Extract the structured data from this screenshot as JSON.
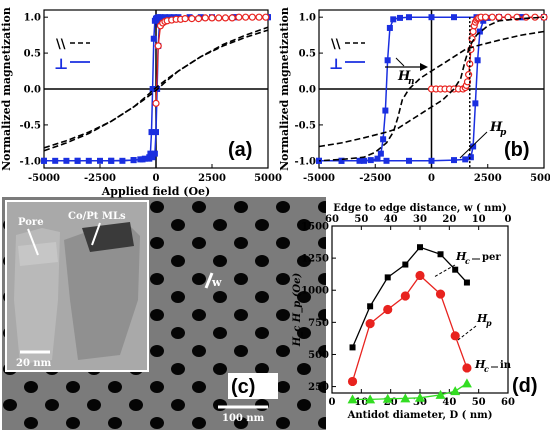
{
  "colors": {
    "blue": "#1a2fe0",
    "red": "#e8231f",
    "black": "#000000",
    "green": "#33dd22",
    "sem_bg": "#7b7b7b"
  },
  "panel_labels": {
    "a": "(a)",
    "b": "(b)",
    "c": "(c)",
    "d": "(d)"
  },
  "sem": {
    "pore_label": "Pore",
    "ml_label": "Co/Pt MLs",
    "scale_inset": "20 nm",
    "scale_main": "100 nm",
    "w_label": "w"
  },
  "chart_data": [
    {
      "id": "a",
      "type": "line",
      "xlabel": "Applied field (Oe)",
      "ylabel": "Normalized magnetization",
      "xlim": [
        -5000,
        5000
      ],
      "ylim": [
        -1.1,
        1.1
      ],
      "xticks": [
        "-5000",
        "-2500",
        "0",
        "2500",
        "5000"
      ],
      "yticks": [
        "-1.0",
        "-0.5",
        "0.0",
        "0.5",
        "1.0"
      ],
      "legend": {
        "placement": "left",
        "entries": [
          {
            "symbol": "\\\\",
            "style": "dashed black"
          },
          {
            "symbol": "⊥",
            "style": "solid blue"
          }
        ]
      },
      "series": [
        {
          "style": "blue squares",
          "branch": "down",
          "x": [
            -5000,
            -4500,
            -4000,
            -3500,
            -3000,
            -2500,
            -2000,
            -1500,
            -1000,
            -700,
            -500,
            -300,
            -250,
            -200,
            -150,
            -100,
            -50,
            0,
            50,
            100,
            200,
            400,
            800,
            1500,
            2500,
            3500,
            5000
          ],
          "y": [
            -1,
            -1,
            -1,
            -1,
            -1,
            -1,
            -1,
            -1,
            -0.99,
            -0.98,
            -0.97,
            -0.95,
            -0.9,
            -0.6,
            0,
            0.7,
            0.95,
            0.98,
            0.99,
            1,
            1,
            1,
            1,
            1,
            1,
            1,
            1
          ]
        },
        {
          "style": "blue squares",
          "branch": "up",
          "x": [
            -5000,
            -3500,
            -2000,
            -1000,
            -600,
            -300,
            -150,
            -50,
            0,
            50,
            100,
            150,
            200,
            250,
            300,
            400,
            600,
            1000,
            2000,
            3500,
            5000
          ],
          "y": [
            -1,
            -1,
            -1,
            -0.99,
            -0.98,
            -0.97,
            -0.95,
            -0.9,
            -0.6,
            0,
            0.6,
            0.9,
            0.95,
            0.97,
            0.98,
            0.99,
            1,
            1,
            1,
            1,
            1
          ]
        },
        {
          "style": "red circles",
          "x": [
            0,
            100,
            200,
            300,
            400,
            500,
            700,
            900,
            1100,
            1300,
            1600,
            1900,
            2200,
            2500,
            2800,
            3100,
            3400,
            3700,
            4000,
            4300,
            4600,
            4900
          ],
          "y": [
            -0.2,
            0.6,
            0.88,
            0.92,
            0.94,
            0.95,
            0.96,
            0.97,
            0.97,
            0.98,
            0.98,
            0.98,
            0.99,
            0.99,
            0.99,
            0.99,
            0.99,
            1,
            1,
            1,
            1,
            1
          ]
        },
        {
          "style": "black dashed",
          "branch": "up",
          "x": [
            -5000,
            -4000,
            -3000,
            -2000,
            -1000,
            -500,
            0,
            500,
            1000,
            2000,
            3000,
            4000,
            5000
          ],
          "y": [
            -0.82,
            -0.72,
            -0.6,
            -0.45,
            -0.25,
            -0.12,
            0.02,
            0.14,
            0.25,
            0.45,
            0.62,
            0.75,
            0.86
          ]
        },
        {
          "style": "black dashed",
          "branch": "down",
          "x": [
            -5000,
            -4000,
            -3000,
            -2000,
            -1000,
            -500,
            0,
            500,
            1000,
            2000,
            3000,
            4000,
            5000
          ],
          "y": [
            -0.86,
            -0.75,
            -0.62,
            -0.45,
            -0.25,
            -0.14,
            -0.02,
            0.12,
            0.25,
            0.45,
            0.6,
            0.72,
            0.82
          ]
        }
      ]
    },
    {
      "id": "b",
      "type": "line",
      "xlabel": "",
      "ylabel": "Normalized magnetization",
      "xlim": [
        -5000,
        5000
      ],
      "ylim": [
        -1.1,
        1.1
      ],
      "xticks": [
        "-5000",
        "-2500",
        "0",
        "2500",
        "5000"
      ],
      "yticks": [
        "-1.0",
        "-0.5",
        "0.0",
        "0.5",
        "1.0"
      ],
      "legend": {
        "placement": "left",
        "entries": [
          {
            "symbol": "\\\\",
            "style": "dashed black"
          },
          {
            "symbol": "⊥",
            "style": "solid blue"
          }
        ]
      },
      "annotations": {
        "Hn": "H",
        "Hn_sub": "n",
        "Hp": "H",
        "Hp_sub": "p"
      },
      "series": [
        {
          "style": "blue squares",
          "branch": "down",
          "x": [
            5000,
            4000,
            3000,
            2000,
            1000,
            0,
            -1000,
            -1400,
            -1700,
            -1850,
            -1950,
            -2050,
            -2150,
            -2250,
            -2400,
            -2700,
            -3200,
            -4000,
            -5000
          ],
          "y": [
            1,
            1,
            1,
            1,
            1,
            1,
            1,
            0.99,
            0.97,
            0.85,
            0.4,
            -0.3,
            -0.7,
            -0.9,
            -0.97,
            -0.99,
            -1,
            -1,
            -1
          ]
        },
        {
          "style": "blue squares",
          "branch": "up",
          "x": [
            -5000,
            -4000,
            -3000,
            -2000,
            -1000,
            0,
            1000,
            1500,
            1750,
            1850,
            1950,
            2050,
            2150,
            2300,
            2500,
            3000,
            4000,
            5000
          ],
          "y": [
            -1,
            -1,
            -1,
            -1,
            -1,
            -1,
            -0.99,
            -0.98,
            -0.95,
            -0.8,
            -0.2,
            0.4,
            0.8,
            0.95,
            0.99,
            1,
            1,
            1
          ]
        },
        {
          "style": "red circles",
          "x": [
            0,
            200,
            400,
            600,
            800,
            1000,
            1200,
            1400,
            1500,
            1550,
            1600,
            1650,
            1700,
            1750,
            1800,
            1850,
            1900,
            1950,
            2000,
            2050,
            2100,
            2200,
            2400,
            2700,
            3000,
            3400,
            3800,
            4200,
            4600,
            5000
          ],
          "y": [
            0,
            0,
            0,
            0,
            0,
            0,
            0,
            0,
            0.02,
            0.05,
            0.1,
            0.2,
            0.35,
            0.55,
            0.7,
            0.8,
            0.88,
            0.93,
            0.96,
            0.98,
            0.99,
            1,
            1,
            1,
            1,
            1,
            1,
            1,
            1,
            1
          ]
        },
        {
          "style": "black dashed",
          "branch": "up",
          "x": [
            -5000,
            -4000,
            -3000,
            -2000,
            -1500,
            -1000,
            -500,
            0,
            500,
            1000,
            1300,
            1500,
            1700,
            2000,
            2500,
            3000,
            4000,
            5000
          ],
          "y": [
            -0.8,
            -0.75,
            -0.68,
            -0.6,
            -0.55,
            -0.45,
            -0.35,
            -0.25,
            -0.15,
            0,
            0.15,
            0.4,
            0.6,
            0.75,
            0.88,
            0.95,
            0.98,
            1
          ]
        },
        {
          "style": "black dashed",
          "branch": "down",
          "x": [
            5000,
            4000,
            3000,
            2000,
            1500,
            1000,
            500,
            0,
            -500,
            -1000,
            -1300,
            -1500,
            -1700,
            -2000,
            -2500,
            -3000,
            -4000,
            -5000
          ],
          "y": [
            0.8,
            0.75,
            0.68,
            0.6,
            0.55,
            0.45,
            0.35,
            0.25,
            0.15,
            0,
            -0.15,
            -0.4,
            -0.6,
            -0.75,
            -0.88,
            -0.95,
            -0.98,
            -1
          ]
        }
      ]
    },
    {
      "id": "d",
      "type": "line",
      "xlabel": "Antidot diameter, D ( nm)",
      "ylabel": "H_c H_p (Oe)",
      "top_xlabel": "Edge to edge distance, w ( nm)",
      "xlim": [
        0,
        60
      ],
      "ylim": [
        200,
        1500
      ],
      "xticks": [
        "0",
        "10",
        "20",
        "30",
        "40",
        "50",
        "60"
      ],
      "top_xticks": [
        "60",
        "50",
        "40",
        "30",
        "20",
        "10",
        "0"
      ],
      "yticks": [
        "250",
        "500",
        "750",
        "1000",
        "1250",
        "1500"
      ],
      "series": [
        {
          "name": "H_c - per",
          "style": "black squares",
          "x": [
            7,
            13,
            19,
            25,
            30,
            37,
            42,
            46
          ],
          "y": [
            555,
            875,
            1100,
            1200,
            1335,
            1280,
            1160,
            1060
          ]
        },
        {
          "name": "H_p",
          "style": "red circles",
          "x": [
            7,
            13,
            19,
            25,
            30,
            37,
            42,
            46
          ],
          "y": [
            290,
            740,
            850,
            955,
            1115,
            970,
            645,
            395
          ]
        },
        {
          "name": "H_c - in",
          "style": "green triangles",
          "x": [
            7,
            13,
            19,
            25,
            30,
            37,
            42,
            46
          ],
          "y": [
            150,
            150,
            155,
            158,
            163,
            185,
            215,
            275
          ]
        }
      ],
      "labels": {
        "hc_per_main": "H",
        "hc_per_sub": "c",
        "hc_per_suffix": "per",
        "hp_main": "H",
        "hp_sub": "p",
        "hc_in_main": "H",
        "hc_in_sub": "c",
        "hc_in_suffix": "in"
      }
    }
  ]
}
